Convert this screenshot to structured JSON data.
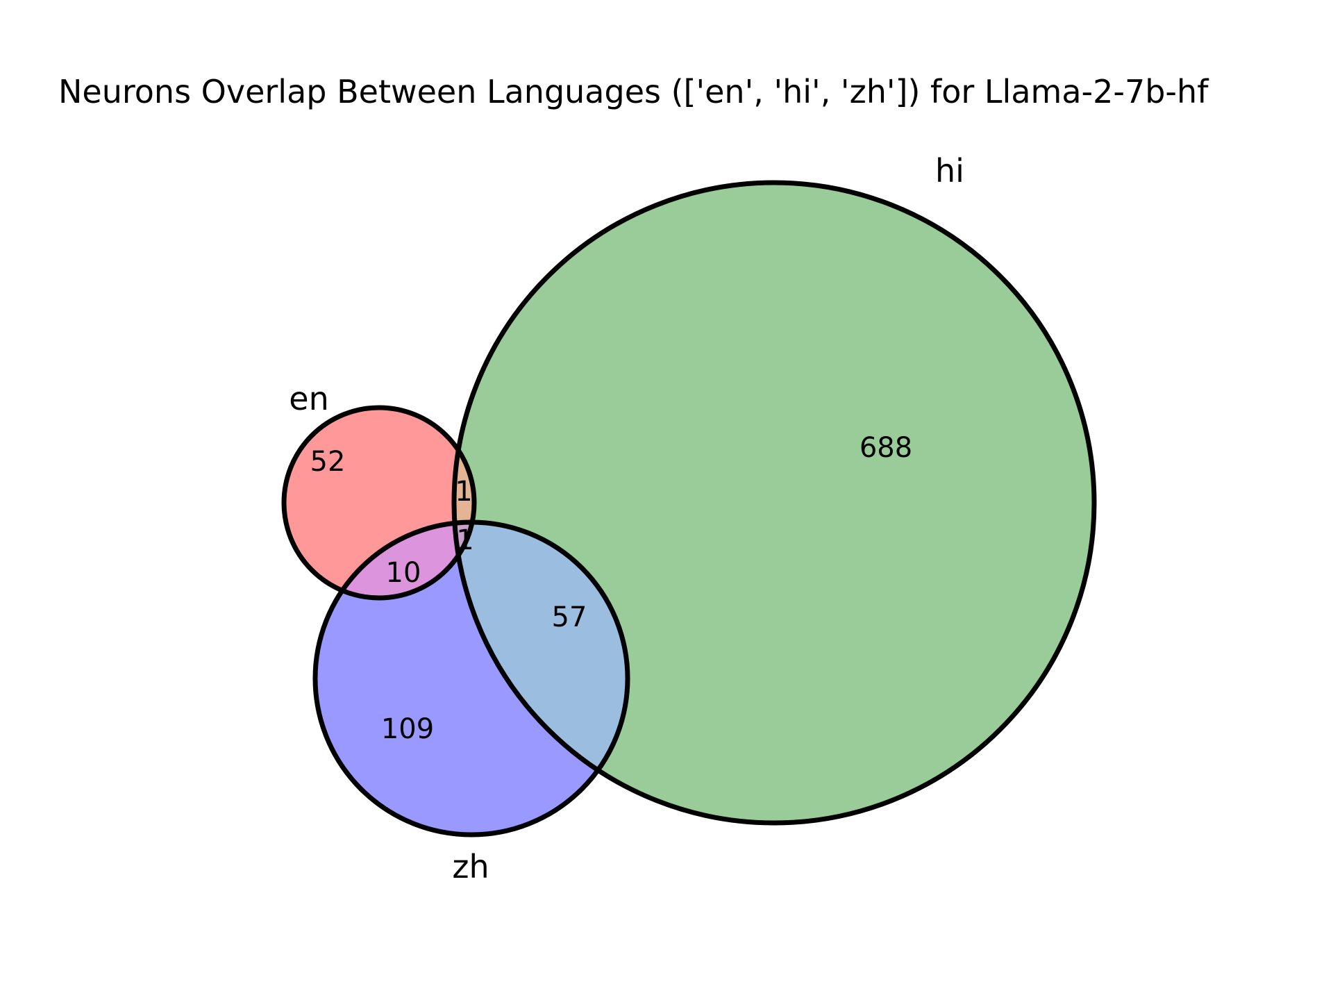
{
  "title": "Neurons Overlap Between Languages (['en', 'hi', 'zh']) for Llama-2-7b-hf",
  "sets": {
    "en": {
      "label": "en",
      "color": "#ff9999"
    },
    "hi": {
      "label": "hi",
      "color": "#99cc99"
    },
    "zh": {
      "label": "zh",
      "color": "#9999ff"
    }
  },
  "regions": {
    "en_only": "52",
    "hi_only": "688",
    "zh_only": "109",
    "en_hi": "1",
    "en_zh": "10",
    "hi_zh": "57",
    "en_hi_zh": "1"
  },
  "region_colors": {
    "en_hi": "#e4b594",
    "en_zh": "#dc94dc",
    "hi_zh": "#9bbde0",
    "en_hi_zh": "#cca0cc"
  }
}
